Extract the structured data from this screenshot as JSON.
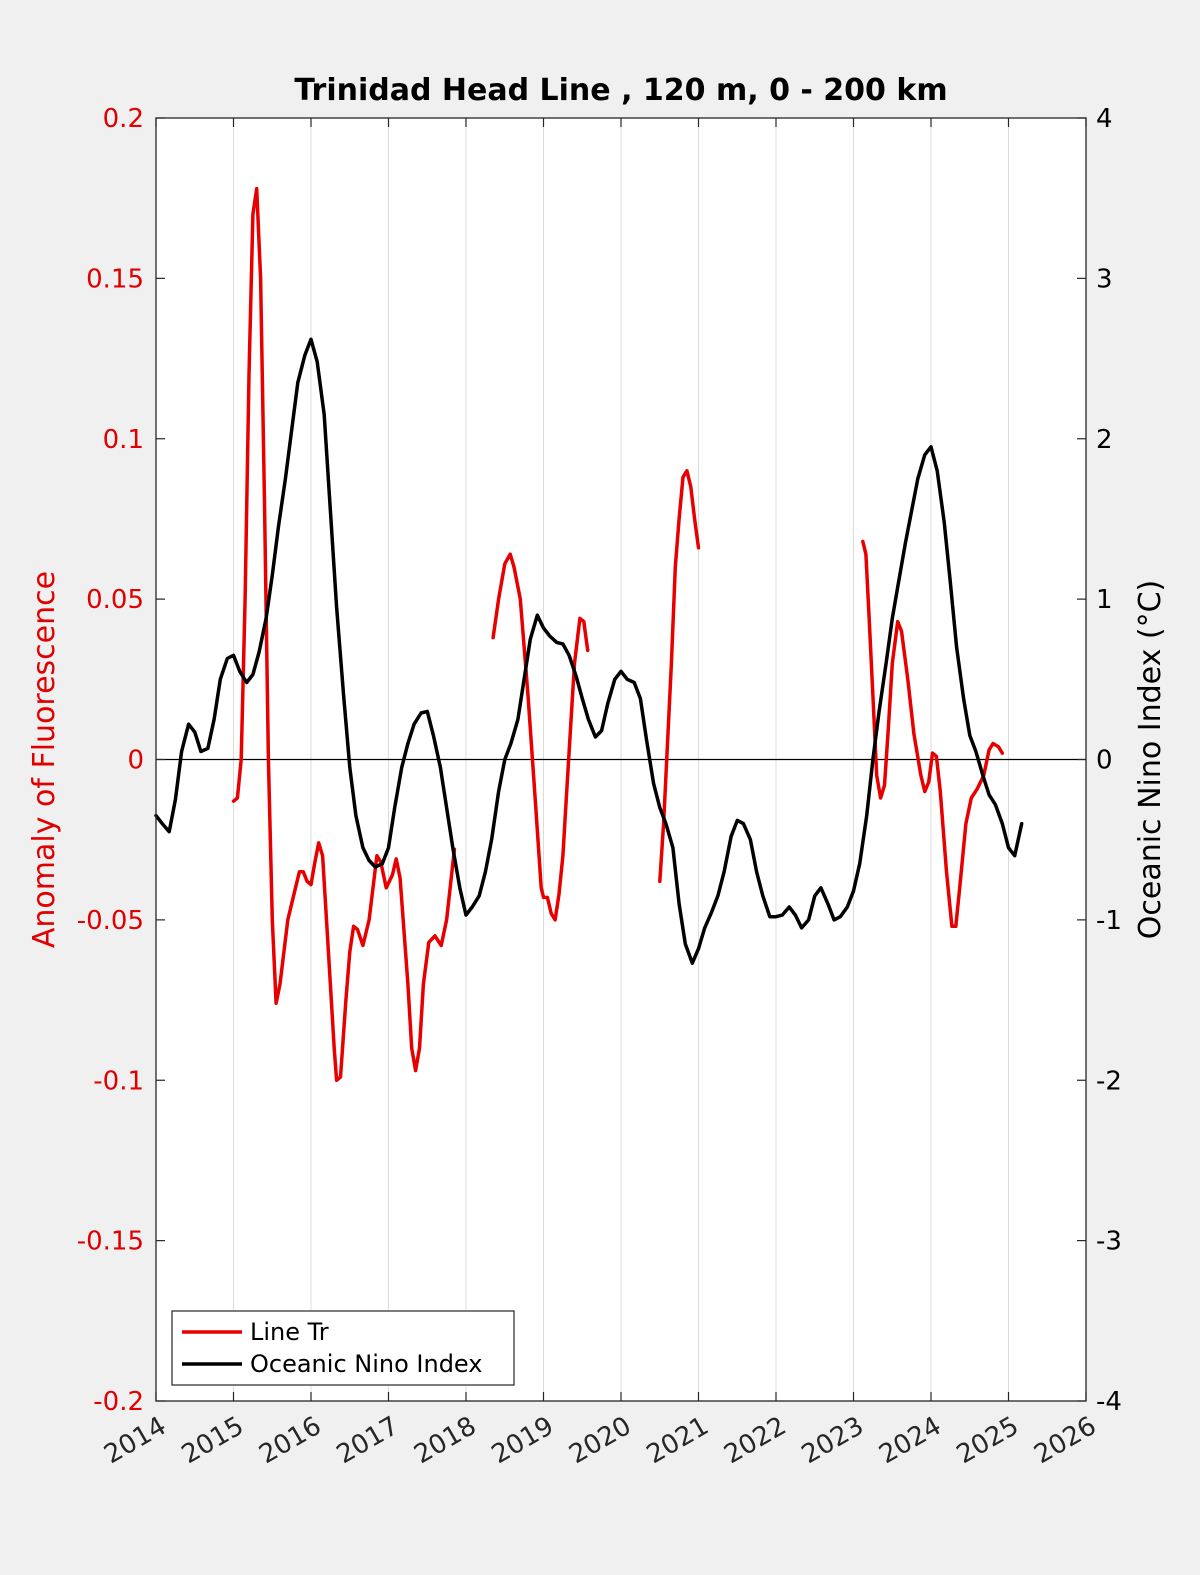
{
  "chart_data": {
    "type": "line",
    "title": "Trinidad Head Line , 120 m, 0 - 200 km",
    "ylabel_left": "Anomaly of Fluorescence",
    "ylabel_right": "Oceanic Nino Index (°C)",
    "xlabel": "",
    "xlim": [
      2014,
      2026
    ],
    "ylim_left": [
      -0.2,
      0.2
    ],
    "ylim_right": [
      -4,
      4
    ],
    "x_ticks": [
      "2014",
      "2015",
      "2016",
      "2017",
      "2018",
      "2019",
      "2020",
      "2021",
      "2022",
      "2023",
      "2024",
      "2025",
      "2026"
    ],
    "y_ticks_left": [
      "-0.2",
      "-0.15",
      "-0.1",
      "-0.05",
      "0",
      "0.05",
      "0.1",
      "0.15",
      "0.2"
    ],
    "y_ticks_right": [
      "-4",
      "-3",
      "-2",
      "-1",
      "0",
      "1",
      "2",
      "3",
      "4"
    ],
    "grid": "vertical",
    "legend_position": "bottom-left",
    "colors": {
      "left_axis": "#e00000",
      "right_axis": "#000000",
      "zero_line": "#000000",
      "grid": "#dcdcdc"
    },
    "series": [
      {
        "name": "Line Tr",
        "axis": "left",
        "color": "#e80000",
        "segments": [
          [
            [
              2015.0,
              -0.013
            ],
            [
              2015.05,
              -0.012
            ],
            [
              2015.1,
              -0.0
            ],
            [
              2015.15,
              0.05
            ],
            [
              2015.2,
              0.12
            ],
            [
              2015.25,
              0.17
            ],
            [
              2015.3,
              0.178
            ],
            [
              2015.35,
              0.15
            ],
            [
              2015.4,
              0.08
            ],
            [
              2015.45,
              0.0
            ],
            [
              2015.5,
              -0.05
            ],
            [
              2015.55,
              -0.076
            ],
            [
              2015.6,
              -0.07
            ],
            [
              2015.7,
              -0.05
            ],
            [
              2015.8,
              -0.04
            ],
            [
              2015.85,
              -0.035
            ],
            [
              2015.9,
              -0.035
            ],
            [
              2015.95,
              -0.038
            ],
            [
              2016.0,
              -0.039
            ],
            [
              2016.05,
              -0.032
            ],
            [
              2016.1,
              -0.026
            ],
            [
              2016.15,
              -0.03
            ],
            [
              2016.2,
              -0.05
            ],
            [
              2016.3,
              -0.09
            ],
            [
              2016.33,
              -0.1
            ],
            [
              2016.38,
              -0.099
            ],
            [
              2016.45,
              -0.075
            ],
            [
              2016.5,
              -0.06
            ],
            [
              2016.55,
              -0.052
            ],
            [
              2016.6,
              -0.053
            ],
            [
              2016.67,
              -0.058
            ],
            [
              2016.75,
              -0.05
            ],
            [
              2016.85,
              -0.03
            ],
            [
              2016.9,
              -0.032
            ],
            [
              2016.97,
              -0.04
            ],
            [
              2017.05,
              -0.036
            ],
            [
              2017.1,
              -0.031
            ],
            [
              2017.15,
              -0.037
            ],
            [
              2017.25,
              -0.07
            ],
            [
              2017.3,
              -0.09
            ],
            [
              2017.35,
              -0.097
            ],
            [
              2017.4,
              -0.09
            ],
            [
              2017.45,
              -0.07
            ],
            [
              2017.52,
              -0.057
            ],
            [
              2017.6,
              -0.055
            ],
            [
              2017.68,
              -0.058
            ],
            [
              2017.75,
              -0.05
            ],
            [
              2017.85,
              -0.028
            ]
          ],
          [
            [
              2018.35,
              0.038
            ],
            [
              2018.42,
              0.05
            ],
            [
              2018.5,
              0.061
            ],
            [
              2018.57,
              0.064
            ],
            [
              2018.62,
              0.06
            ],
            [
              2018.7,
              0.05
            ],
            [
              2018.8,
              0.02
            ],
            [
              2018.9,
              -0.015
            ],
            [
              2018.97,
              -0.04
            ],
            [
              2019.0,
              -0.043
            ],
            [
              2019.05,
              -0.043
            ],
            [
              2019.1,
              -0.048
            ],
            [
              2019.15,
              -0.05
            ],
            [
              2019.2,
              -0.042
            ],
            [
              2019.25,
              -0.03
            ],
            [
              2019.3,
              -0.01
            ],
            [
              2019.35,
              0.01
            ],
            [
              2019.4,
              0.03
            ],
            [
              2019.47,
              0.044
            ],
            [
              2019.52,
              0.043
            ],
            [
              2019.57,
              0.034
            ]
          ],
          [
            [
              2020.5,
              -0.038
            ],
            [
              2020.55,
              -0.02
            ],
            [
              2020.6,
              0.005
            ],
            [
              2020.65,
              0.03
            ],
            [
              2020.7,
              0.06
            ],
            [
              2020.75,
              0.075
            ],
            [
              2020.8,
              0.088
            ],
            [
              2020.85,
              0.09
            ],
            [
              2020.9,
              0.085
            ],
            [
              2020.95,
              0.075
            ],
            [
              2021.0,
              0.066
            ]
          ],
          [
            [
              2023.12,
              0.068
            ],
            [
              2023.16,
              0.064
            ],
            [
              2023.2,
              0.045
            ],
            [
              2023.25,
              0.02
            ],
            [
              2023.3,
              -0.005
            ],
            [
              2023.35,
              -0.012
            ],
            [
              2023.4,
              -0.008
            ],
            [
              2023.45,
              0.01
            ],
            [
              2023.5,
              0.03
            ],
            [
              2023.57,
              0.043
            ],
            [
              2023.62,
              0.04
            ],
            [
              2023.7,
              0.025
            ],
            [
              2023.78,
              0.008
            ],
            [
              2023.87,
              -0.005
            ],
            [
              2023.92,
              -0.01
            ],
            [
              2023.97,
              -0.007
            ],
            [
              2024.02,
              0.002
            ],
            [
              2024.07,
              0.001
            ],
            [
              2024.12,
              -0.01
            ],
            [
              2024.2,
              -0.035
            ],
            [
              2024.27,
              -0.052
            ],
            [
              2024.32,
              -0.052
            ],
            [
              2024.37,
              -0.04
            ],
            [
              2024.45,
              -0.02
            ],
            [
              2024.52,
              -0.012
            ],
            [
              2024.6,
              -0.009
            ],
            [
              2024.68,
              -0.005
            ],
            [
              2024.75,
              0.003
            ],
            [
              2024.8,
              0.005
            ],
            [
              2024.87,
              0.004
            ],
            [
              2024.92,
              0.002
            ]
          ]
        ]
      },
      {
        "name": "Oceanic Nino Index",
        "axis": "right",
        "color": "#000000",
        "points": [
          [
            2014.0,
            -0.35
          ],
          [
            2014.08,
            -0.4
          ],
          [
            2014.17,
            -0.45
          ],
          [
            2014.25,
            -0.25
          ],
          [
            2014.33,
            0.05
          ],
          [
            2014.42,
            0.22
          ],
          [
            2014.5,
            0.17
          ],
          [
            2014.58,
            0.05
          ],
          [
            2014.67,
            0.07
          ],
          [
            2014.75,
            0.25
          ],
          [
            2014.83,
            0.5
          ],
          [
            2014.92,
            0.63
          ],
          [
            2015.0,
            0.65
          ],
          [
            2015.08,
            0.55
          ],
          [
            2015.17,
            0.48
          ],
          [
            2015.25,
            0.53
          ],
          [
            2015.33,
            0.67
          ],
          [
            2015.42,
            0.88
          ],
          [
            2015.5,
            1.15
          ],
          [
            2015.58,
            1.45
          ],
          [
            2015.67,
            1.75
          ],
          [
            2015.75,
            2.05
          ],
          [
            2015.83,
            2.35
          ],
          [
            2015.92,
            2.52
          ],
          [
            2016.0,
            2.62
          ],
          [
            2016.08,
            2.48
          ],
          [
            2016.17,
            2.15
          ],
          [
            2016.25,
            1.55
          ],
          [
            2016.33,
            0.95
          ],
          [
            2016.42,
            0.4
          ],
          [
            2016.5,
            -0.05
          ],
          [
            2016.58,
            -0.35
          ],
          [
            2016.67,
            -0.55
          ],
          [
            2016.75,
            -0.63
          ],
          [
            2016.83,
            -0.67
          ],
          [
            2016.92,
            -0.65
          ],
          [
            2017.0,
            -0.55
          ],
          [
            2017.08,
            -0.3
          ],
          [
            2017.17,
            -0.05
          ],
          [
            2017.25,
            0.1
          ],
          [
            2017.33,
            0.22
          ],
          [
            2017.42,
            0.29
          ],
          [
            2017.5,
            0.3
          ],
          [
            2017.58,
            0.15
          ],
          [
            2017.67,
            -0.05
          ],
          [
            2017.75,
            -0.3
          ],
          [
            2017.83,
            -0.55
          ],
          [
            2017.92,
            -0.8
          ],
          [
            2018.0,
            -0.97
          ],
          [
            2018.08,
            -0.92
          ],
          [
            2018.17,
            -0.85
          ],
          [
            2018.25,
            -0.7
          ],
          [
            2018.33,
            -0.5
          ],
          [
            2018.42,
            -0.2
          ],
          [
            2018.5,
            0.0
          ],
          [
            2018.58,
            0.1
          ],
          [
            2018.67,
            0.25
          ],
          [
            2018.75,
            0.5
          ],
          [
            2018.83,
            0.75
          ],
          [
            2018.92,
            0.9
          ],
          [
            2019.0,
            0.82
          ],
          [
            2019.08,
            0.77
          ],
          [
            2019.17,
            0.73
          ],
          [
            2019.25,
            0.72
          ],
          [
            2019.33,
            0.65
          ],
          [
            2019.42,
            0.52
          ],
          [
            2019.5,
            0.38
          ],
          [
            2019.58,
            0.25
          ],
          [
            2019.67,
            0.14
          ],
          [
            2019.75,
            0.18
          ],
          [
            2019.83,
            0.35
          ],
          [
            2019.92,
            0.5
          ],
          [
            2020.0,
            0.55
          ],
          [
            2020.08,
            0.5
          ],
          [
            2020.17,
            0.48
          ],
          [
            2020.25,
            0.38
          ],
          [
            2020.33,
            0.12
          ],
          [
            2020.42,
            -0.15
          ],
          [
            2020.5,
            -0.3
          ],
          [
            2020.58,
            -0.4
          ],
          [
            2020.67,
            -0.55
          ],
          [
            2020.75,
            -0.9
          ],
          [
            2020.83,
            -1.15
          ],
          [
            2020.92,
            -1.27
          ],
          [
            2021.0,
            -1.18
          ],
          [
            2021.08,
            -1.05
          ],
          [
            2021.17,
            -0.95
          ],
          [
            2021.25,
            -0.85
          ],
          [
            2021.33,
            -0.7
          ],
          [
            2021.42,
            -0.48
          ],
          [
            2021.5,
            -0.38
          ],
          [
            2021.58,
            -0.4
          ],
          [
            2021.67,
            -0.5
          ],
          [
            2021.75,
            -0.7
          ],
          [
            2021.83,
            -0.85
          ],
          [
            2021.92,
            -0.98
          ],
          [
            2022.0,
            -0.98
          ],
          [
            2022.08,
            -0.97
          ],
          [
            2022.17,
            -0.92
          ],
          [
            2022.25,
            -0.97
          ],
          [
            2022.33,
            -1.05
          ],
          [
            2022.42,
            -1.0
          ],
          [
            2022.5,
            -0.85
          ],
          [
            2022.58,
            -0.8
          ],
          [
            2022.67,
            -0.9
          ],
          [
            2022.75,
            -1.0
          ],
          [
            2022.83,
            -0.98
          ],
          [
            2022.92,
            -0.92
          ],
          [
            2023.0,
            -0.82
          ],
          [
            2023.08,
            -0.65
          ],
          [
            2023.17,
            -0.35
          ],
          [
            2023.25,
            0.0
          ],
          [
            2023.33,
            0.3
          ],
          [
            2023.42,
            0.6
          ],
          [
            2023.5,
            0.88
          ],
          [
            2023.58,
            1.1
          ],
          [
            2023.67,
            1.35
          ],
          [
            2023.75,
            1.55
          ],
          [
            2023.83,
            1.75
          ],
          [
            2023.92,
            1.9
          ],
          [
            2024.0,
            1.95
          ],
          [
            2024.08,
            1.8
          ],
          [
            2024.17,
            1.48
          ],
          [
            2024.25,
            1.1
          ],
          [
            2024.33,
            0.7
          ],
          [
            2024.42,
            0.38
          ],
          [
            2024.5,
            0.15
          ],
          [
            2024.58,
            0.05
          ],
          [
            2024.67,
            -0.1
          ],
          [
            2024.75,
            -0.22
          ],
          [
            2024.83,
            -0.28
          ],
          [
            2024.92,
            -0.4
          ],
          [
            2025.0,
            -0.55
          ],
          [
            2025.08,
            -0.6
          ],
          [
            2025.17,
            -0.4
          ]
        ]
      }
    ]
  }
}
